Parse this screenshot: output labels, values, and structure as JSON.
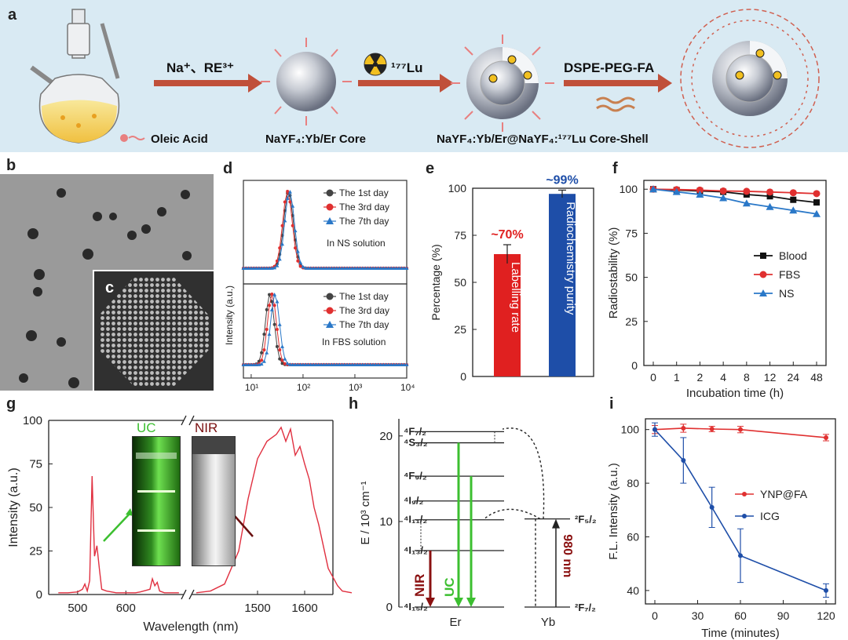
{
  "panel_letters": {
    "a": "a",
    "b": "b",
    "c": "c",
    "d": "d",
    "e": "e",
    "f": "f",
    "g": "g",
    "h": "h",
    "i": "i"
  },
  "panel_a": {
    "arrow1_label": "Na⁺、RE³⁺",
    "arrow2_label": "¹⁷⁷Lu",
    "arrow3_label": "DSPE-PEG-FA",
    "legend_oleic": "Oleic Acid",
    "core_label": "NaYF₄:Yb/Er Core",
    "coreshell_label": "NaYF₄:Yb/Er@NaYF₄:¹⁷⁷Lu Core-Shell",
    "colors": {
      "background": "#d9eaf3",
      "arrow": "#c0503a",
      "oleic": "#e88080"
    }
  },
  "chart_d": {
    "ylabel": "Intensity (a.u.)",
    "x_ticks": [
      "10¹",
      "10²",
      "10³",
      "10⁴"
    ],
    "top": {
      "annotation": "In NS solution",
      "legend": [
        "The 1st day",
        "The 3rd day",
        "The 7th day"
      ]
    },
    "bottom": {
      "annotation": "In FBS solution",
      "legend": [
        "The 1st day",
        "The 3rd day",
        "The 7th day"
      ]
    }
  },
  "chart_data": [
    {
      "id": "e",
      "type": "bar",
      "ylabel": "Percentage (%)",
      "ylim": [
        0,
        100
      ],
      "yticks": [
        "0",
        "25",
        "50",
        "75",
        "100"
      ],
      "bars": [
        {
          "value": 65,
          "error": 5,
          "color": "#e02020",
          "inner_label": "Labelling rate",
          "top_label": "~70%",
          "top_color": "#e02020"
        },
        {
          "value": 97,
          "error": 2,
          "color": "#1e4ea8",
          "inner_label": "Radiochemistry purity",
          "top_label": "~99%",
          "top_color": "#1e4ea8"
        }
      ]
    },
    {
      "id": "f",
      "type": "line",
      "xlabel": "Incubation time (h)",
      "ylabel": "Radiostability (%)",
      "categories": [
        "0",
        "1",
        "2",
        "4",
        "8",
        "12",
        "24",
        "48"
      ],
      "ylim": [
        0,
        105
      ],
      "yticks": [
        "0",
        "25",
        "50",
        "75",
        "100"
      ],
      "series": [
        {
          "name": "Blood",
          "color": "#111111",
          "marker": "square",
          "values": [
            100,
            99.5,
            99,
            98.5,
            97,
            96,
            94,
            92.5
          ]
        },
        {
          "name": "FBS",
          "color": "#e03030",
          "marker": "circle",
          "values": [
            100,
            99.8,
            99.5,
            99,
            98.8,
            98.4,
            98,
            97.5
          ]
        },
        {
          "name": "NS",
          "color": "#2a78c8",
          "marker": "triangle",
          "values": [
            100,
            98.5,
            97,
            95,
            92,
            90,
            88,
            86
          ]
        }
      ]
    },
    {
      "id": "g",
      "type": "line",
      "xlabel": "Wavelength (nm)",
      "ylabel": "Intensity (a.u.)",
      "ylim": [
        0,
        100
      ],
      "yticks": [
        "0",
        "25",
        "50",
        "75",
        "100"
      ],
      "xticks_left": [
        "500",
        "600"
      ],
      "xticks_right": [
        "1500",
        "1600"
      ],
      "inset_labels": {
        "uc": "UC",
        "nir": "NIR"
      },
      "color": "#e03040",
      "left_series": {
        "x": [
          460,
          480,
          500,
          510,
          515,
          520,
          525,
          530,
          535,
          540,
          545,
          550,
          560,
          580,
          600,
          620,
          630,
          650,
          655,
          660,
          665,
          670,
          680,
          700,
          710
        ],
        "y": [
          1,
          1,
          1.5,
          3,
          6,
          2,
          8,
          68,
          22,
          28,
          15,
          3,
          2,
          1,
          1,
          1,
          1.5,
          3,
          9,
          5,
          7,
          2,
          1,
          1,
          1
        ]
      },
      "right_series": {
        "x": [
          1370,
          1400,
          1430,
          1460,
          1480,
          1500,
          1520,
          1540,
          1550,
          1560,
          1570,
          1580,
          1590,
          1600,
          1610,
          1620,
          1630,
          1650,
          1670,
          1680,
          1700
        ],
        "y": [
          1,
          2,
          6,
          25,
          55,
          78,
          88,
          92,
          96,
          88,
          95,
          80,
          85,
          75,
          66,
          50,
          40,
          15,
          5,
          2,
          1
        ]
      }
    },
    {
      "id": "i",
      "type": "line",
      "xlabel": "Time (minutes)",
      "ylabel": "F.L. Intensity (a.u.)",
      "x": [
        0,
        20,
        40,
        60,
        120
      ],
      "xticks": [
        "0",
        "30",
        "60",
        "90",
        "120"
      ],
      "ylim": [
        35,
        104
      ],
      "yticks": [
        "40",
        "60",
        "80",
        "100"
      ],
      "series": [
        {
          "name": "YNP@FA",
          "color": "#e03030",
          "values": [
            100,
            100.5,
            100.2,
            100,
            97
          ],
          "errors": [
            1.5,
            1.5,
            1,
            1.2,
            1.2
          ]
        },
        {
          "name": "ICG",
          "color": "#1e4ea8",
          "values": [
            100,
            88.5,
            71,
            53,
            40
          ],
          "errors": [
            2.5,
            8.5,
            7.5,
            10,
            2.5
          ]
        }
      ]
    }
  ],
  "chart_h": {
    "ylabel": "E / 10³ cm⁻¹",
    "yticks": [
      "0",
      "10",
      "20"
    ],
    "er_levels": [
      "⁴F₇/₂",
      "⁴S₃/₂",
      "⁴F₉/₂",
      "⁴I₉/₂",
      "⁴I₁₁/₂",
      "⁴I₁₃/₂",
      "⁴I₁₅/₂"
    ],
    "yb_levels": [
      "²F₅/₂",
      "²F₇/₂"
    ],
    "er_label": "Er",
    "yb_label": "Yb",
    "nir_label": "NIR",
    "uc_label": "UC",
    "excitation_label": "980 nm"
  }
}
